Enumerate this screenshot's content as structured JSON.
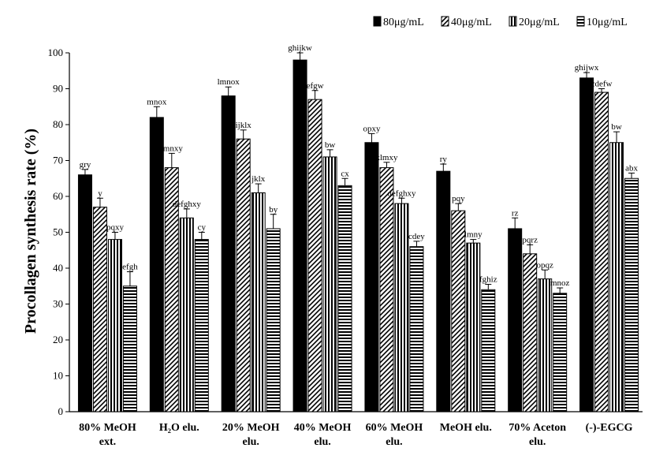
{
  "chart_data": {
    "type": "bar",
    "title": "",
    "xlabel": "",
    "ylabel": "Procollagen synthesis rate (%)",
    "ylim": [
      0,
      100
    ],
    "yticks": [
      0,
      10,
      20,
      30,
      40,
      50,
      60,
      70,
      80,
      90,
      100
    ],
    "legend_position": "top-right",
    "categories": [
      [
        "80% MeOH",
        "ext."
      ],
      [
        "H₂O elu."
      ],
      [
        "20% MeOH",
        "elu."
      ],
      [
        "40% MeOH",
        "elu."
      ],
      [
        "60% MeOH",
        "elu."
      ],
      [
        "MeOH elu."
      ],
      [
        "70% Aceton",
        "elu."
      ],
      [
        "(-)-EGCG"
      ]
    ],
    "series": [
      {
        "name": "80μg/mL",
        "pattern": "solid",
        "values": [
          66,
          82,
          88,
          98,
          75,
          67,
          51,
          93
        ],
        "errors": [
          1.5,
          3,
          2.5,
          2,
          2.5,
          2,
          3,
          1.5
        ],
        "labels": [
          "gry",
          "mnox",
          "lmnox",
          "ghijkw",
          "opxy",
          "ry",
          "rz",
          "ghijwx"
        ]
      },
      {
        "name": "40μg/mL",
        "pattern": "diagonal",
        "values": [
          57,
          68,
          76,
          87,
          68,
          56,
          44,
          89
        ],
        "errors": [
          2.5,
          4,
          2.5,
          2.5,
          1.5,
          2,
          2.5,
          1
        ],
        "labels": [
          "y",
          "lmnxy",
          "ijklx",
          "efgw",
          "klmxy",
          "pqy",
          "pqrz",
          "cdefw"
        ]
      },
      {
        "name": "20μg/mL",
        "pattern": "vertical",
        "values": [
          48,
          54,
          61,
          71,
          58,
          47,
          37,
          75
        ],
        "errors": [
          2,
          2.5,
          2.5,
          2,
          1.5,
          1,
          2.5,
          3
        ],
        "labels": [
          "pqxy",
          "defghxy",
          "jklx",
          "bw",
          "defghxy",
          "lmny",
          "opqz",
          "bw"
        ]
      },
      {
        "name": "10μg/mL",
        "pattern": "horizontal",
        "values": [
          35,
          48,
          51,
          63,
          46,
          34,
          33,
          65
        ],
        "errors": [
          4,
          2,
          4,
          2,
          1.5,
          1.5,
          1.5,
          1.5
        ],
        "labels": [
          "efgh",
          "cy",
          "by",
          "cx",
          "cdey",
          "fghiz",
          "mnoz",
          "abx"
        ]
      }
    ]
  }
}
